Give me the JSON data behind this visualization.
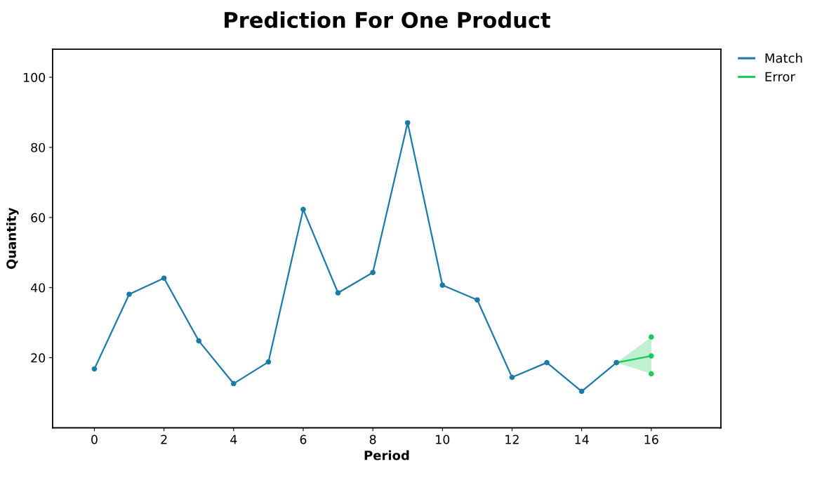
{
  "chart_data": {
    "type": "line",
    "title": "Prediction For One Product",
    "xlabel": "Period",
    "ylabel": "Quantity",
    "xlim": [
      -1.2,
      18
    ],
    "xticks": [
      0,
      2,
      4,
      6,
      8,
      10,
      12,
      14,
      16
    ],
    "ylim": [
      0,
      108
    ],
    "yticks": [
      20,
      40,
      60,
      80,
      100
    ],
    "grid": false,
    "legend": "top right",
    "marker": "circle",
    "line_style": "solid",
    "series": [
      {
        "name": "Match",
        "color": "#1a7aa8",
        "x": [
          0,
          1,
          2,
          3,
          4,
          5,
          6,
          7,
          8,
          9,
          10,
          11,
          12,
          13,
          14,
          15
        ],
        "values": [
          16.8,
          38.1,
          42.7,
          24.8,
          12.6,
          18.8,
          62.3,
          38.5,
          44.3,
          87.0,
          40.7,
          36.5,
          14.4,
          18.6,
          10.4,
          18.6
        ]
      },
      {
        "name": "Error",
        "color": "#1ec85a",
        "x": [
          15,
          16
        ],
        "values": [
          18.6,
          20.5
        ],
        "lower": [
          18.6,
          15.4
        ],
        "upper": [
          18.6,
          25.9
        ]
      },
      {
        "type": "scatter",
        "color": "#1ec85a",
        "x": [
          16,
          16
        ],
        "values": [
          15.4,
          25.9
        ]
      }
    ]
  }
}
